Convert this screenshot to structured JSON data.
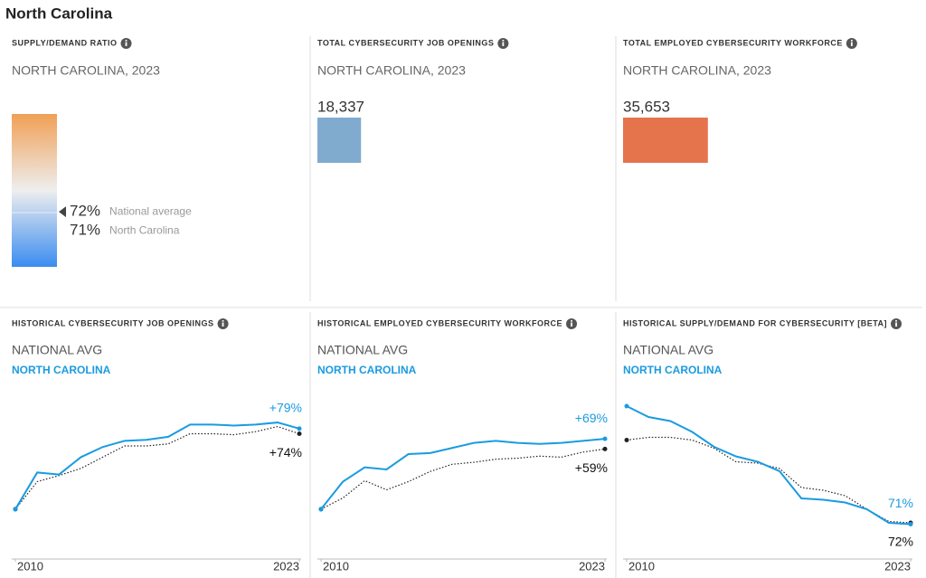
{
  "page_title": "North Carolina",
  "chart_data": [
    {
      "type": "scale",
      "title": "SUPPLY/DEMAND RATIO",
      "subtitle": "NORTH CAROLINA, 2023",
      "ylim": [
        0,
        200
      ],
      "colors": [
        "#f0a055",
        "#eeeeee",
        "#3a8cf0"
      ],
      "series": [
        {
          "name": "National average",
          "values": [
            72
          ],
          "value_labels": [
            "72%"
          ]
        },
        {
          "name": "North Carolina",
          "values": [
            71
          ],
          "value_labels": [
            "71%"
          ]
        }
      ]
    },
    {
      "type": "bar",
      "title": "TOTAL CYBERSECURITY JOB OPENINGS",
      "subtitle": "NORTH CAROLINA, 2023",
      "values": [
        18337
      ],
      "value_labels": [
        "18,337"
      ],
      "color": "#80abce",
      "xlim": [
        0,
        65000
      ]
    },
    {
      "type": "bar",
      "title": "TOTAL EMPLOYED CYBERSECURITY WORKFORCE",
      "subtitle": "NORTH CAROLINA, 2023",
      "values": [
        35653
      ],
      "value_labels": [
        "35,653"
      ],
      "color": "#e5734c",
      "xlim": [
        0,
        65000
      ]
    },
    {
      "type": "line",
      "title": "HISTORICAL CYBERSECURITY JOB OPENINGS",
      "x": [
        2010,
        2011,
        2012,
        2013,
        2014,
        2015,
        2016,
        2017,
        2018,
        2019,
        2020,
        2021,
        2022,
        2023
      ],
      "xlim": [
        2010,
        2023
      ],
      "xticks": [
        2010,
        2023
      ],
      "ylim": [
        -24,
        109
      ],
      "series": [
        {
          "name": "NATIONAL AVG",
          "color": "#222222",
          "style": "dotted",
          "values": [
            0,
            27,
            33,
            40,
            51,
            62,
            62,
            64,
            74,
            74,
            73,
            76,
            81,
            74
          ],
          "value_labels": [
            null,
            null,
            null,
            null,
            null,
            null,
            null,
            null,
            null,
            null,
            null,
            null,
            null,
            "+74%"
          ]
        },
        {
          "name": "NORTH CAROLINA",
          "color": "#1a9be0",
          "style": "solid",
          "values": [
            0,
            36,
            34,
            51,
            61,
            67,
            68,
            71,
            83,
            83,
            82,
            83,
            85,
            79
          ],
          "value_labels": [
            null,
            null,
            null,
            null,
            null,
            null,
            null,
            null,
            null,
            null,
            null,
            null,
            null,
            "+79%"
          ]
        }
      ]
    },
    {
      "type": "line",
      "title": "HISTORICAL EMPLOYED CYBERSECURITY WORKFORCE",
      "x": [
        2010,
        2011,
        2012,
        2013,
        2014,
        2015,
        2016,
        2017,
        2018,
        2019,
        2020,
        2021,
        2022,
        2023
      ],
      "xlim": [
        2010,
        2023
      ],
      "xticks": [
        2010,
        2023
      ],
      "ylim": [
        -24,
        109
      ],
      "series": [
        {
          "name": "NATIONAL AVG",
          "color": "#222222",
          "style": "dotted",
          "values": [
            0,
            11,
            28,
            19,
            27,
            37,
            44,
            46,
            49,
            50,
            52,
            51,
            56,
            59
          ],
          "value_labels": [
            null,
            null,
            null,
            null,
            null,
            null,
            null,
            null,
            null,
            null,
            null,
            null,
            null,
            "+59%"
          ]
        },
        {
          "name": "NORTH CAROLINA",
          "color": "#1a9be0",
          "style": "solid",
          "values": [
            0,
            27,
            41,
            39,
            54,
            55,
            60,
            65,
            67,
            65,
            64,
            65,
            67,
            69
          ],
          "value_labels": [
            null,
            null,
            null,
            null,
            null,
            null,
            null,
            null,
            null,
            null,
            null,
            null,
            null,
            "+69%"
          ]
        }
      ]
    },
    {
      "type": "line",
      "title": "HISTORICAL SUPPLY/DEMAND FOR CYBERSECURITY [BETA]",
      "x": [
        2010,
        2011,
        2012,
        2013,
        2014,
        2015,
        2016,
        2017,
        2018,
        2019,
        2020,
        2021,
        2022,
        2023
      ],
      "xlim": [
        2010,
        2023
      ],
      "xticks": [
        2010,
        2023
      ],
      "ylim": [
        64,
        164
      ],
      "series": [
        {
          "name": "NATIONAL AVG",
          "color": "#222222",
          "style": "dotted",
          "values": [
            133,
            135,
            135,
            133,
            127,
            117,
            116,
            112,
            98,
            96,
            92,
            82,
            73,
            72
          ],
          "value_labels": [
            null,
            null,
            null,
            null,
            null,
            null,
            null,
            null,
            null,
            null,
            null,
            null,
            null,
            "72%"
          ]
        },
        {
          "name": "NORTH CAROLINA",
          "color": "#1a9be0",
          "style": "solid",
          "values": [
            158,
            150,
            147,
            139,
            128,
            121,
            117,
            110,
            90,
            89,
            87,
            82,
            72,
            71
          ],
          "value_labels": [
            null,
            null,
            null,
            null,
            null,
            null,
            null,
            null,
            null,
            null,
            null,
            null,
            null,
            "71%"
          ]
        }
      ]
    }
  ]
}
